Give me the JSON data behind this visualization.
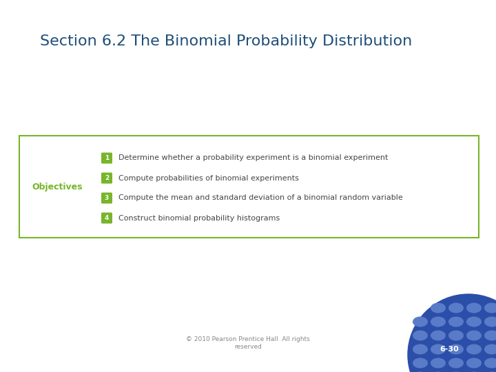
{
  "title": "Section 6.2 The Binomial Probability Distribution",
  "title_color": "#1F4E79",
  "title_fontsize": 16,
  "background_color": "#FFFFFF",
  "objectives_label": "Objectives",
  "objectives_color": "#77B52A",
  "box_border_color": "#77B52A",
  "objectives": [
    "Determine whether a probability experiment is a binomial experiment",
    "Compute probabilities of binomial experiments",
    "Compute the mean and standard deviation of a binomial random variable",
    "Construct binomial probability histograms"
  ],
  "number_bg_color": "#77B52A",
  "number_text_color": "#FFFFFF",
  "objectives_text_color": "#444444",
  "footer_text": "© 2010 Pearson Prentice Hall  All rights\nreserved",
  "footer_color": "#888888",
  "slide_number": "6-30",
  "slide_num_text_color": "#FFFFFF",
  "dot_bg_color": "#2B4EA8",
  "dot_ellipse_color": "#5A7BC8"
}
